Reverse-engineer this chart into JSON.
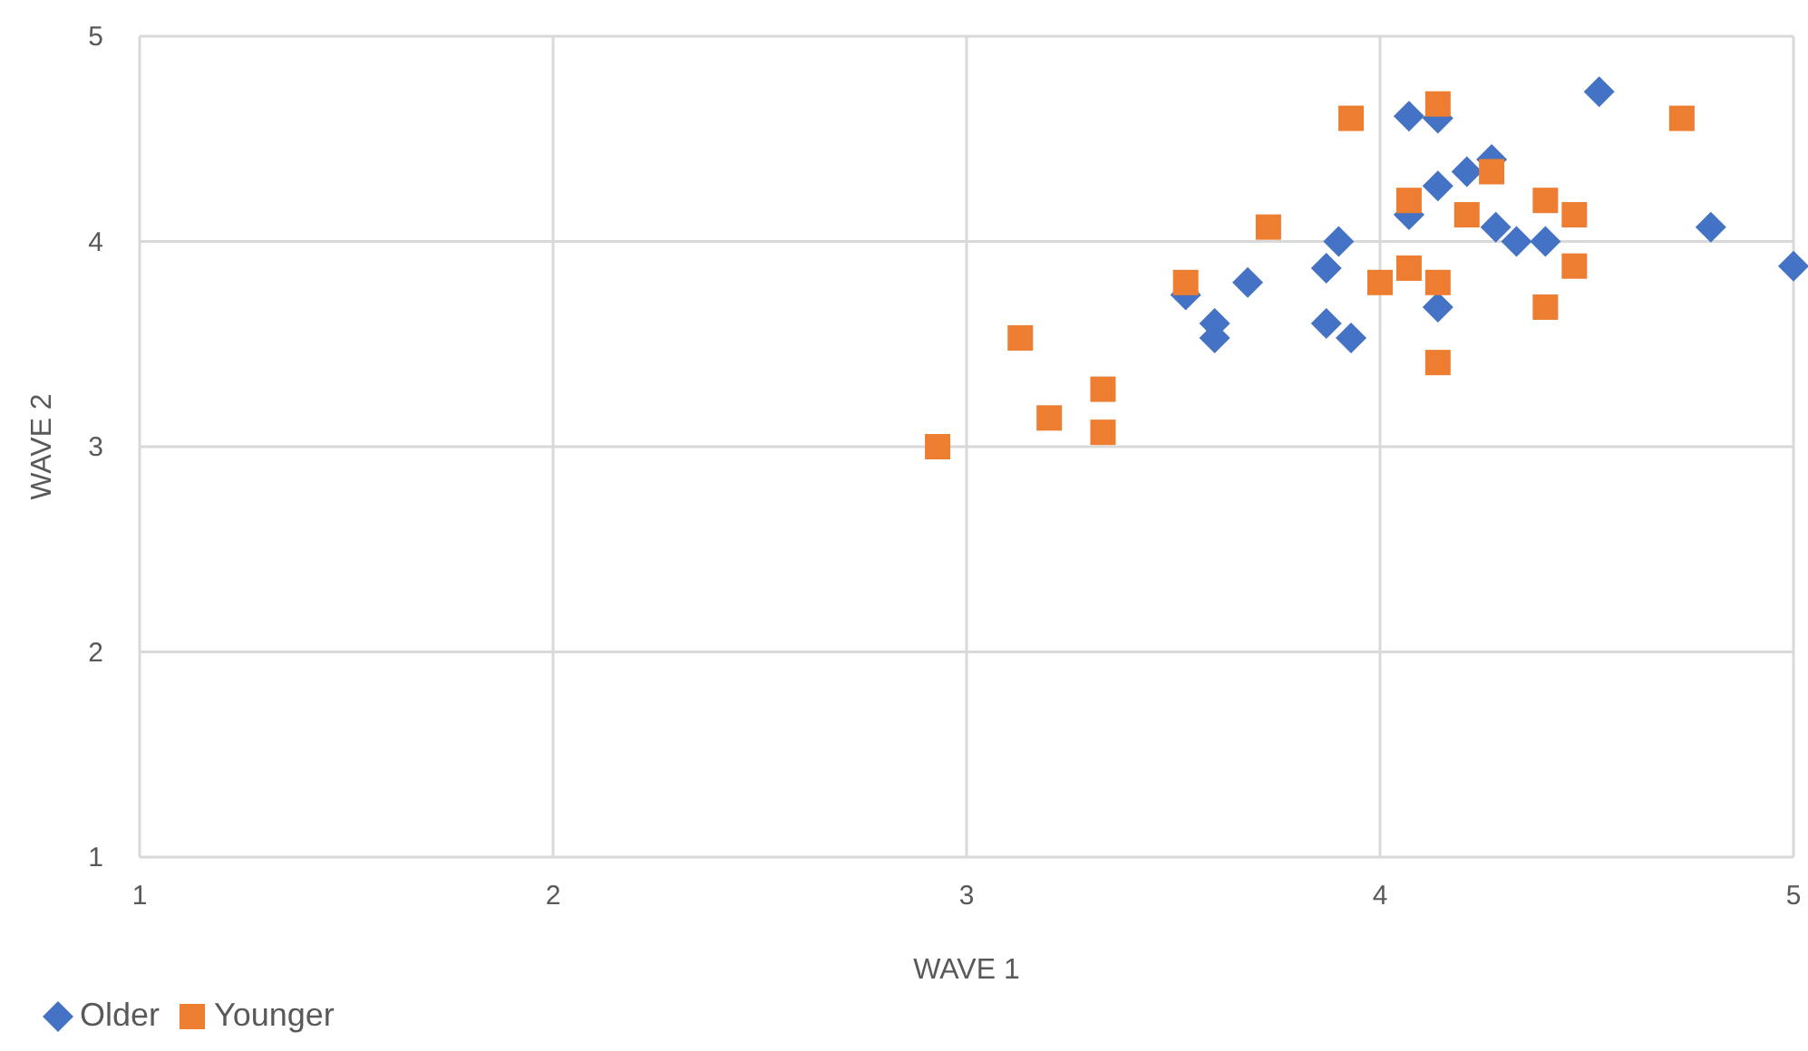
{
  "chart_data": {
    "type": "scatter",
    "xlabel": "WAVE 1",
    "ylabel": "WAVE 2",
    "xlim": [
      1,
      5
    ],
    "ylim": [
      1,
      5
    ],
    "xticks": [
      1,
      2,
      3,
      4,
      5
    ],
    "yticks": [
      1,
      2,
      3,
      4,
      5
    ],
    "grid": true,
    "legend": "bottom left",
    "series": [
      {
        "name": "Older",
        "color": "#4472c4",
        "marker": "diamond",
        "x": [
          3.53,
          3.6,
          3.6,
          3.68,
          3.87,
          3.9,
          3.87,
          3.93,
          4.07,
          4.14,
          4.27,
          4.14,
          4.21,
          4.07,
          4.28,
          4.33,
          4.4,
          4.53,
          4.8,
          5.0,
          4.14
        ],
        "values": [
          3.74,
          3.6,
          3.53,
          3.8,
          3.87,
          4.0,
          3.6,
          3.53,
          4.61,
          4.6,
          4.4,
          4.27,
          4.34,
          4.13,
          4.07,
          4.0,
          4.0,
          4.73,
          4.07,
          3.88,
          3.68
        ]
      },
      {
        "name": "Younger",
        "color": "#ed7d31",
        "marker": "square",
        "x": [
          2.93,
          3.13,
          3.2,
          3.33,
          3.33,
          3.53,
          3.73,
          3.93,
          4.0,
          4.07,
          4.07,
          4.14,
          4.14,
          4.14,
          4.21,
          4.27,
          4.4,
          4.47,
          4.47,
          4.4,
          4.73
        ],
        "values": [
          3.0,
          3.53,
          3.14,
          3.28,
          3.07,
          3.8,
          4.07,
          4.6,
          3.8,
          4.2,
          3.87,
          4.67,
          3.8,
          3.41,
          4.13,
          4.34,
          4.2,
          4.13,
          3.88,
          3.68,
          4.6
        ]
      }
    ]
  }
}
